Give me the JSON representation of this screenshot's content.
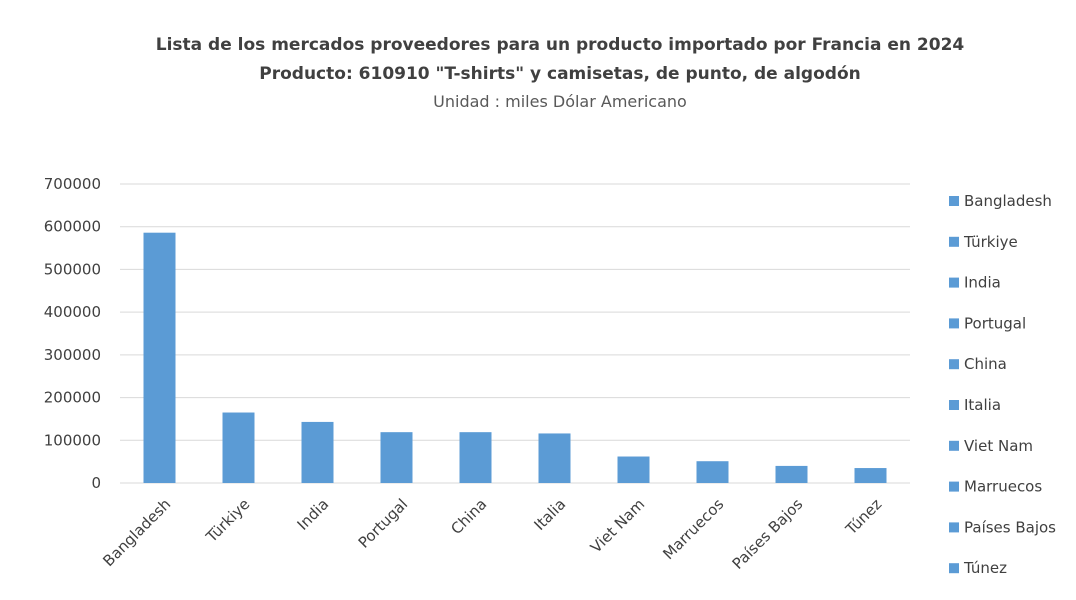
{
  "chart_data": {
    "type": "bar",
    "title": "Lista de los mercados proveedores para un producto importado por Francia en 2024",
    "title_line2": "Producto: 610910 \"T-shirts\" y camisetas, de punto, de algodón",
    "subtitle": "Unidad : miles Dólar Americano",
    "categories": [
      "Bangladesh",
      "Türkiye",
      "India",
      "Portugal",
      "China",
      "Italia",
      "Viet Nam",
      "Marruecos",
      "Países Bajos",
      "Túnez"
    ],
    "values": [
      586000,
      165000,
      143000,
      119000,
      119000,
      116000,
      62000,
      51000,
      40000,
      35000
    ],
    "ylim": [
      0,
      700000
    ],
    "yticks": [
      "0",
      "100000",
      "200000",
      "300000",
      "400000",
      "500000",
      "600000",
      "700000"
    ],
    "xlabel": "",
    "ylabel": "",
    "grid": true,
    "legend_position": "right",
    "bar_color": "#5b9bd5",
    "grid_color": "#d9d9d9"
  }
}
